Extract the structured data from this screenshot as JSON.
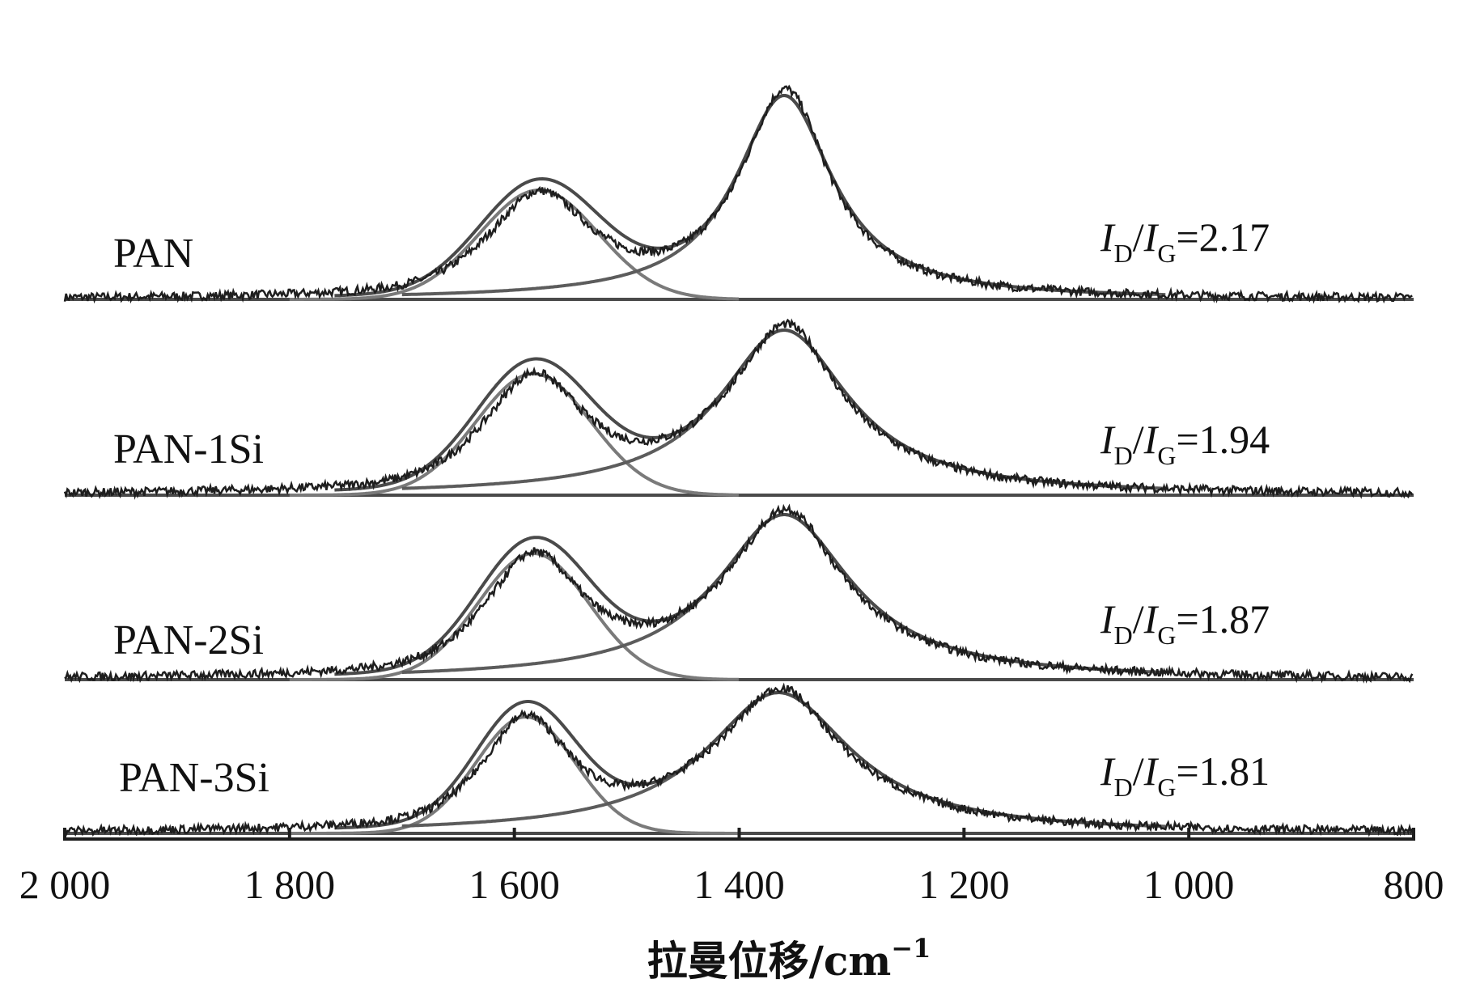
{
  "chart_data": {
    "type": "line",
    "xlabel": "拉曼位移/cm",
    "xlabel_sup": "−1",
    "xlim": [
      2000,
      800
    ],
    "x_ticks": [
      2000,
      1800,
      1600,
      1400,
      1200,
      1000,
      800
    ],
    "x_tick_labels": [
      "2 000",
      "1 800",
      "1 600",
      "1 400",
      "1 200",
      "1 000",
      "800"
    ],
    "y_axis": "none",
    "grid": false,
    "colors": {
      "raw": "#1e1e1e",
      "fit": "#4a4a4a",
      "g_band": "#7a7a7a",
      "d_band": "#5c5c5c"
    },
    "series": [
      {
        "name": "PAN",
        "ratio": {
          "i": "I",
          "d": "D",
          "g": "G",
          "value": "=2.17"
        },
        "g_peak": {
          "center": 1578,
          "height": 0.45,
          "width": 62
        },
        "d_peak": {
          "center": 1360,
          "height": 0.84,
          "width": 75
        },
        "baseline_end": 1120
      },
      {
        "name": "PAN-1Si",
        "ratio": {
          "i": "I",
          "d": "D",
          "g": "G",
          "value": "=1.94"
        },
        "g_peak": {
          "center": 1583,
          "height": 0.5,
          "width": 60
        },
        "d_peak": {
          "center": 1360,
          "height": 0.68,
          "width": 100
        },
        "baseline_end": 1040
      },
      {
        "name": "PAN-2Si",
        "ratio": {
          "i": "I",
          "d": "D",
          "g": "G",
          "value": "=1.87"
        },
        "g_peak": {
          "center": 1583,
          "height": 0.52,
          "width": 58
        },
        "d_peak": {
          "center": 1360,
          "height": 0.68,
          "width": 104
        },
        "baseline_end": 1060
      },
      {
        "name": "PAN-3Si",
        "ratio": {
          "i": "I",
          "d": "D",
          "g": "G",
          "value": "=1.81"
        },
        "g_peak": {
          "center": 1590,
          "height": 0.48,
          "width": 52
        },
        "d_peak": {
          "center": 1365,
          "height": 0.58,
          "width": 112
        },
        "baseline_end": 1020
      }
    ]
  }
}
